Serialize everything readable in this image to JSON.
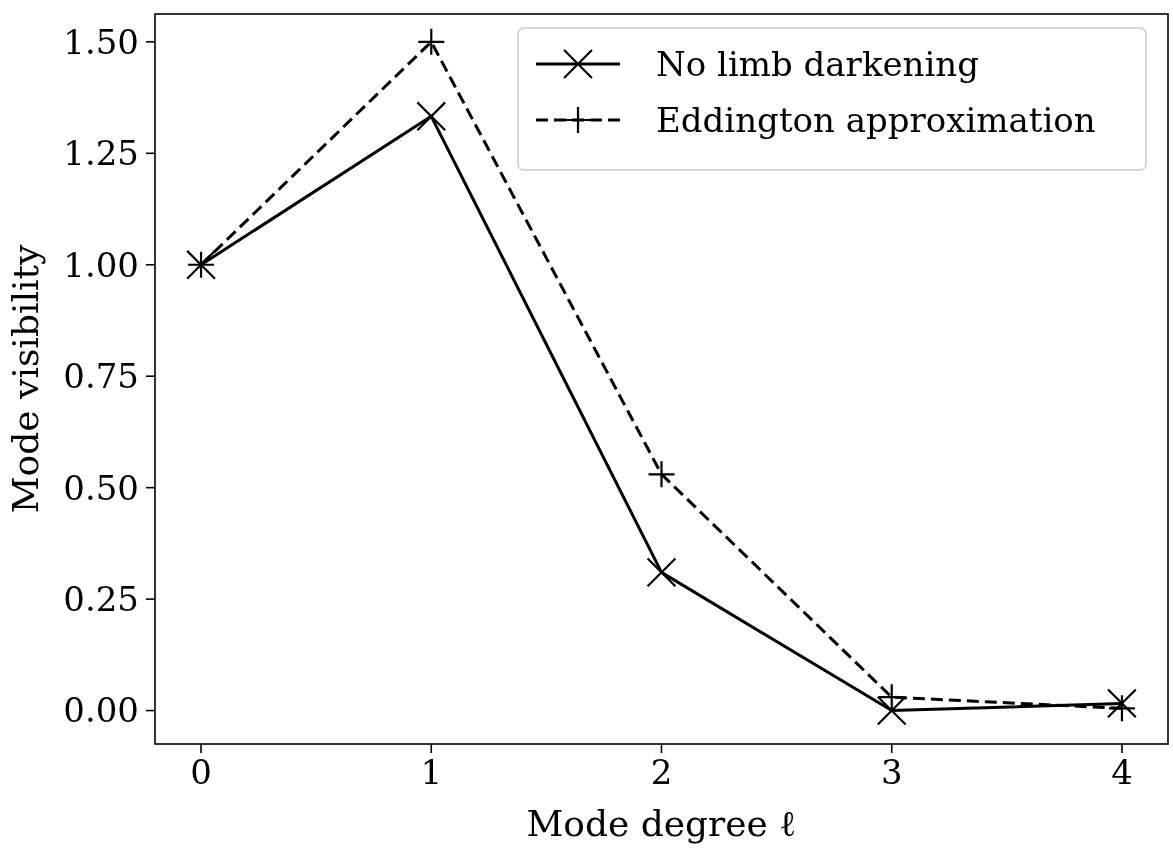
{
  "chart_data": {
    "type": "line",
    "xlabel": "Mode degree ℓ",
    "ylabel": "Mode visibility",
    "x": [
      0,
      1,
      2,
      3,
      4
    ],
    "series": [
      {
        "name": "No limb darkening",
        "color": "#000000",
        "values": [
          1.0,
          1.333,
          0.31,
          0.0,
          0.016
        ],
        "marker": "x",
        "line_style": "solid"
      },
      {
        "name": "Eddington approximation",
        "color": "#000000",
        "values": [
          1.0,
          1.5,
          0.53,
          0.03,
          0.005
        ],
        "marker": "cross",
        "line_style": "dashed"
      }
    ],
    "xlim": [
      -0.2,
      4.2
    ],
    "xticks": [
      0,
      1,
      2,
      3,
      4
    ],
    "ylim": [
      -0.075,
      1.5625
    ],
    "yticks": [
      {
        "value": 0,
        "label": "0.00"
      },
      {
        "value": 0.25,
        "label": "0.25"
      },
      {
        "value": 0.5,
        "label": "0.50"
      },
      {
        "value": 0.75,
        "label": "0.75"
      },
      {
        "value": 1,
        "label": "1.00"
      },
      {
        "value": 1.25,
        "label": "1.25"
      },
      {
        "value": 1.5,
        "label": "1.50"
      }
    ],
    "legend": "top right",
    "grid": false
  }
}
